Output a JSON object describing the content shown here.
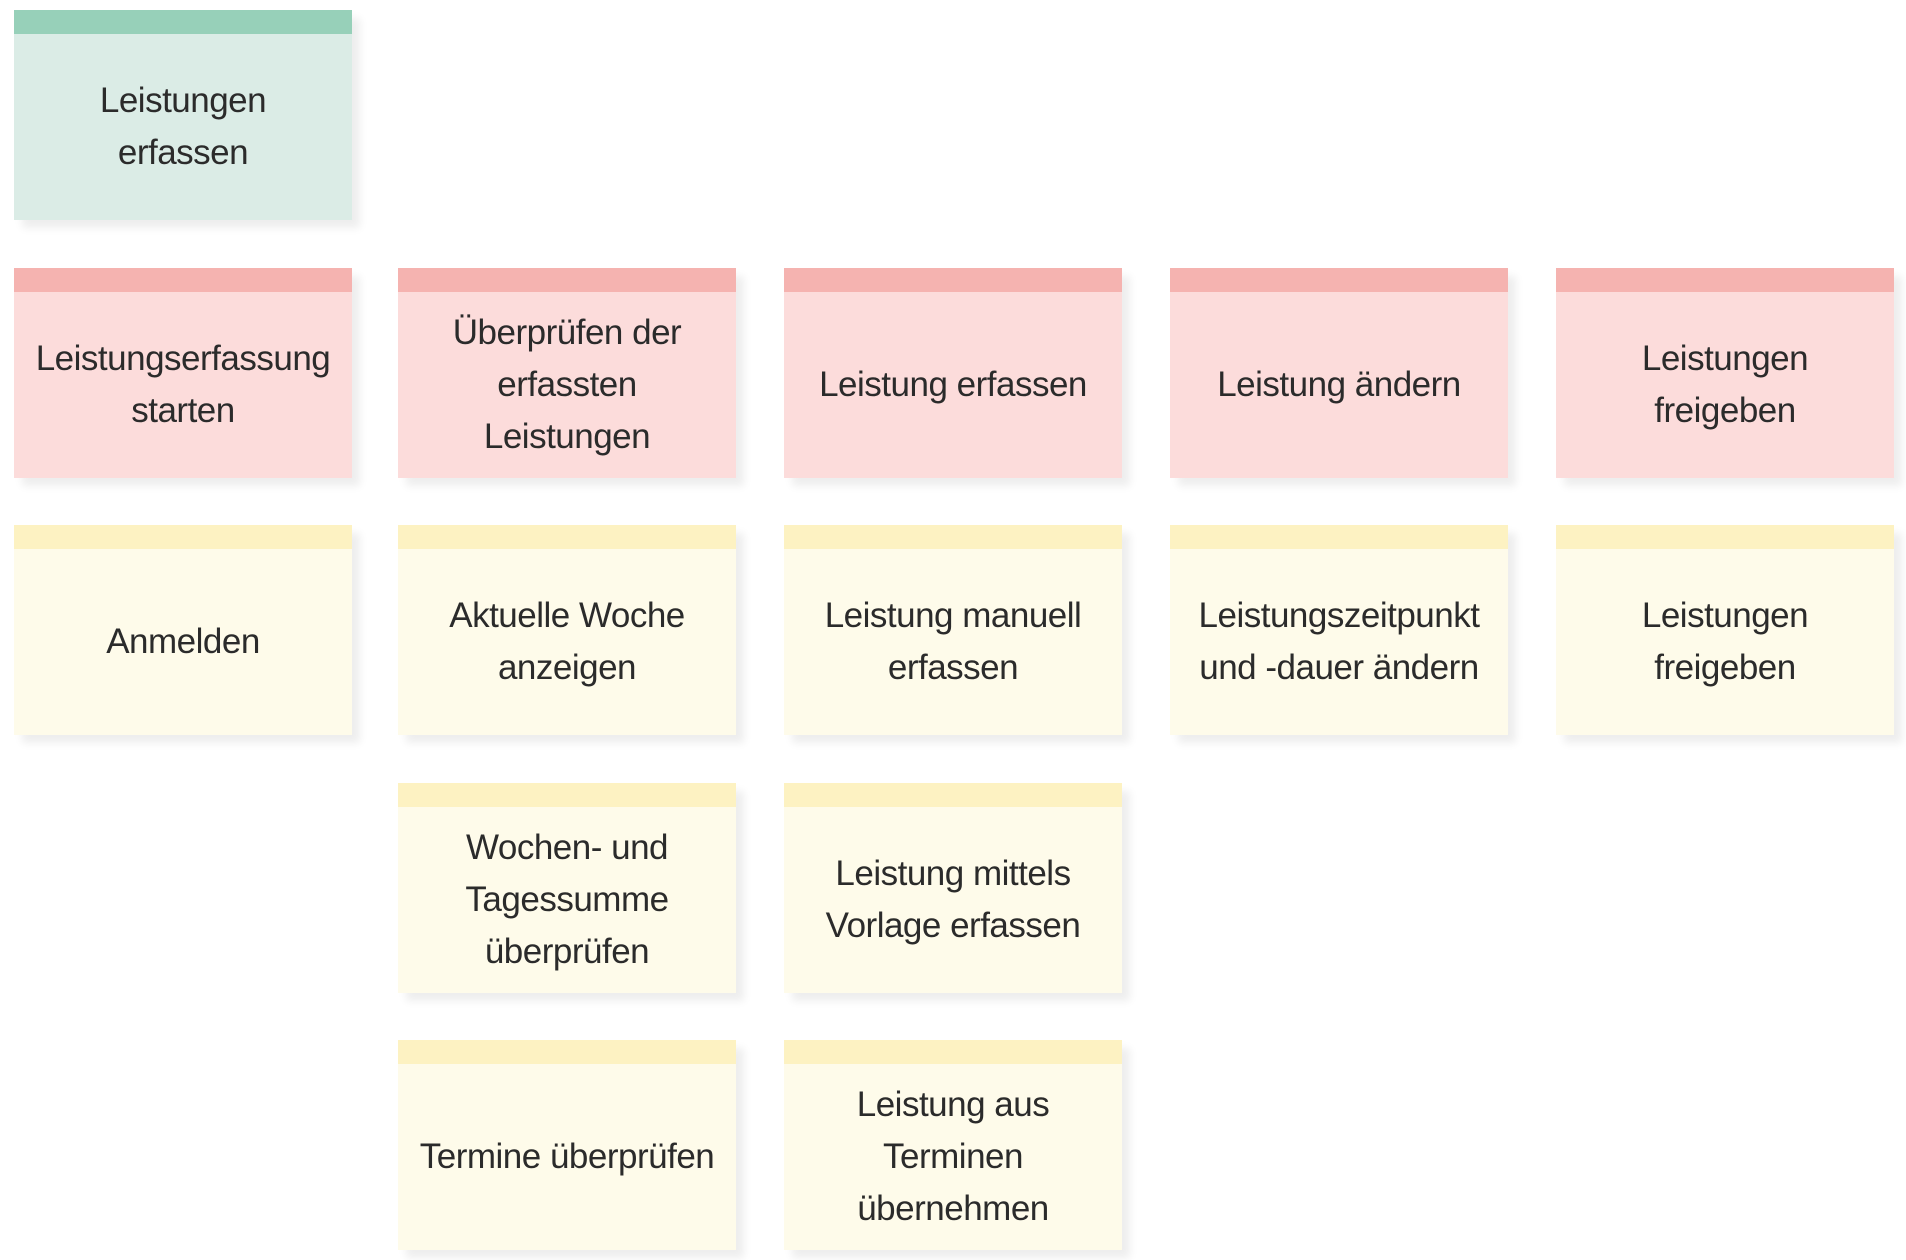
{
  "activity": {
    "label": "Leistungen erfassen"
  },
  "steps": [
    {
      "label": "Leistungserfassung\nstarten"
    },
    {
      "label": "Überprüfen der\nerfassten Leistungen"
    },
    {
      "label": "Leistung erfassen"
    },
    {
      "label": "Leistung ändern"
    },
    {
      "label": "Leistungen freigeben"
    }
  ],
  "stories": [
    {
      "label": "Anmelden"
    },
    {
      "label": "Aktuelle Woche\nanzeigen"
    },
    {
      "label": "Leistung manuell\nerfassen"
    },
    {
      "label": "Leistungszeitpunkt\nund -dauer ändern"
    },
    {
      "label": "Leistungen freigeben"
    },
    {
      "label": "Wochen- und\nTagessumme\nüberprüfen"
    },
    {
      "label": "Leistung mittels\nVorlage erfassen"
    },
    {
      "label": "Termine überprüfen"
    },
    {
      "label": "Leistung aus Terminen\nübernehmen"
    }
  ],
  "colors": {
    "activity": "#dbece6",
    "step": "#fcdcdb",
    "story": "#fefbea"
  }
}
